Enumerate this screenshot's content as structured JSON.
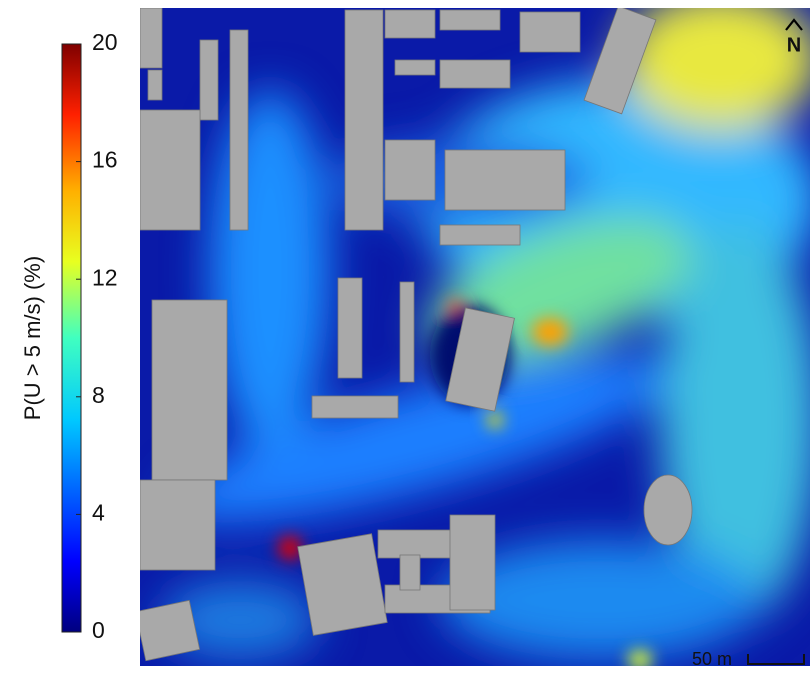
{
  "colorbar": {
    "label": "P(U > 5 m/s) (%)",
    "range": [
      0,
      20
    ],
    "ticks": [
      0,
      4,
      8,
      12,
      16,
      20
    ]
  },
  "north_label": "N",
  "scale_label": "50 m"
}
